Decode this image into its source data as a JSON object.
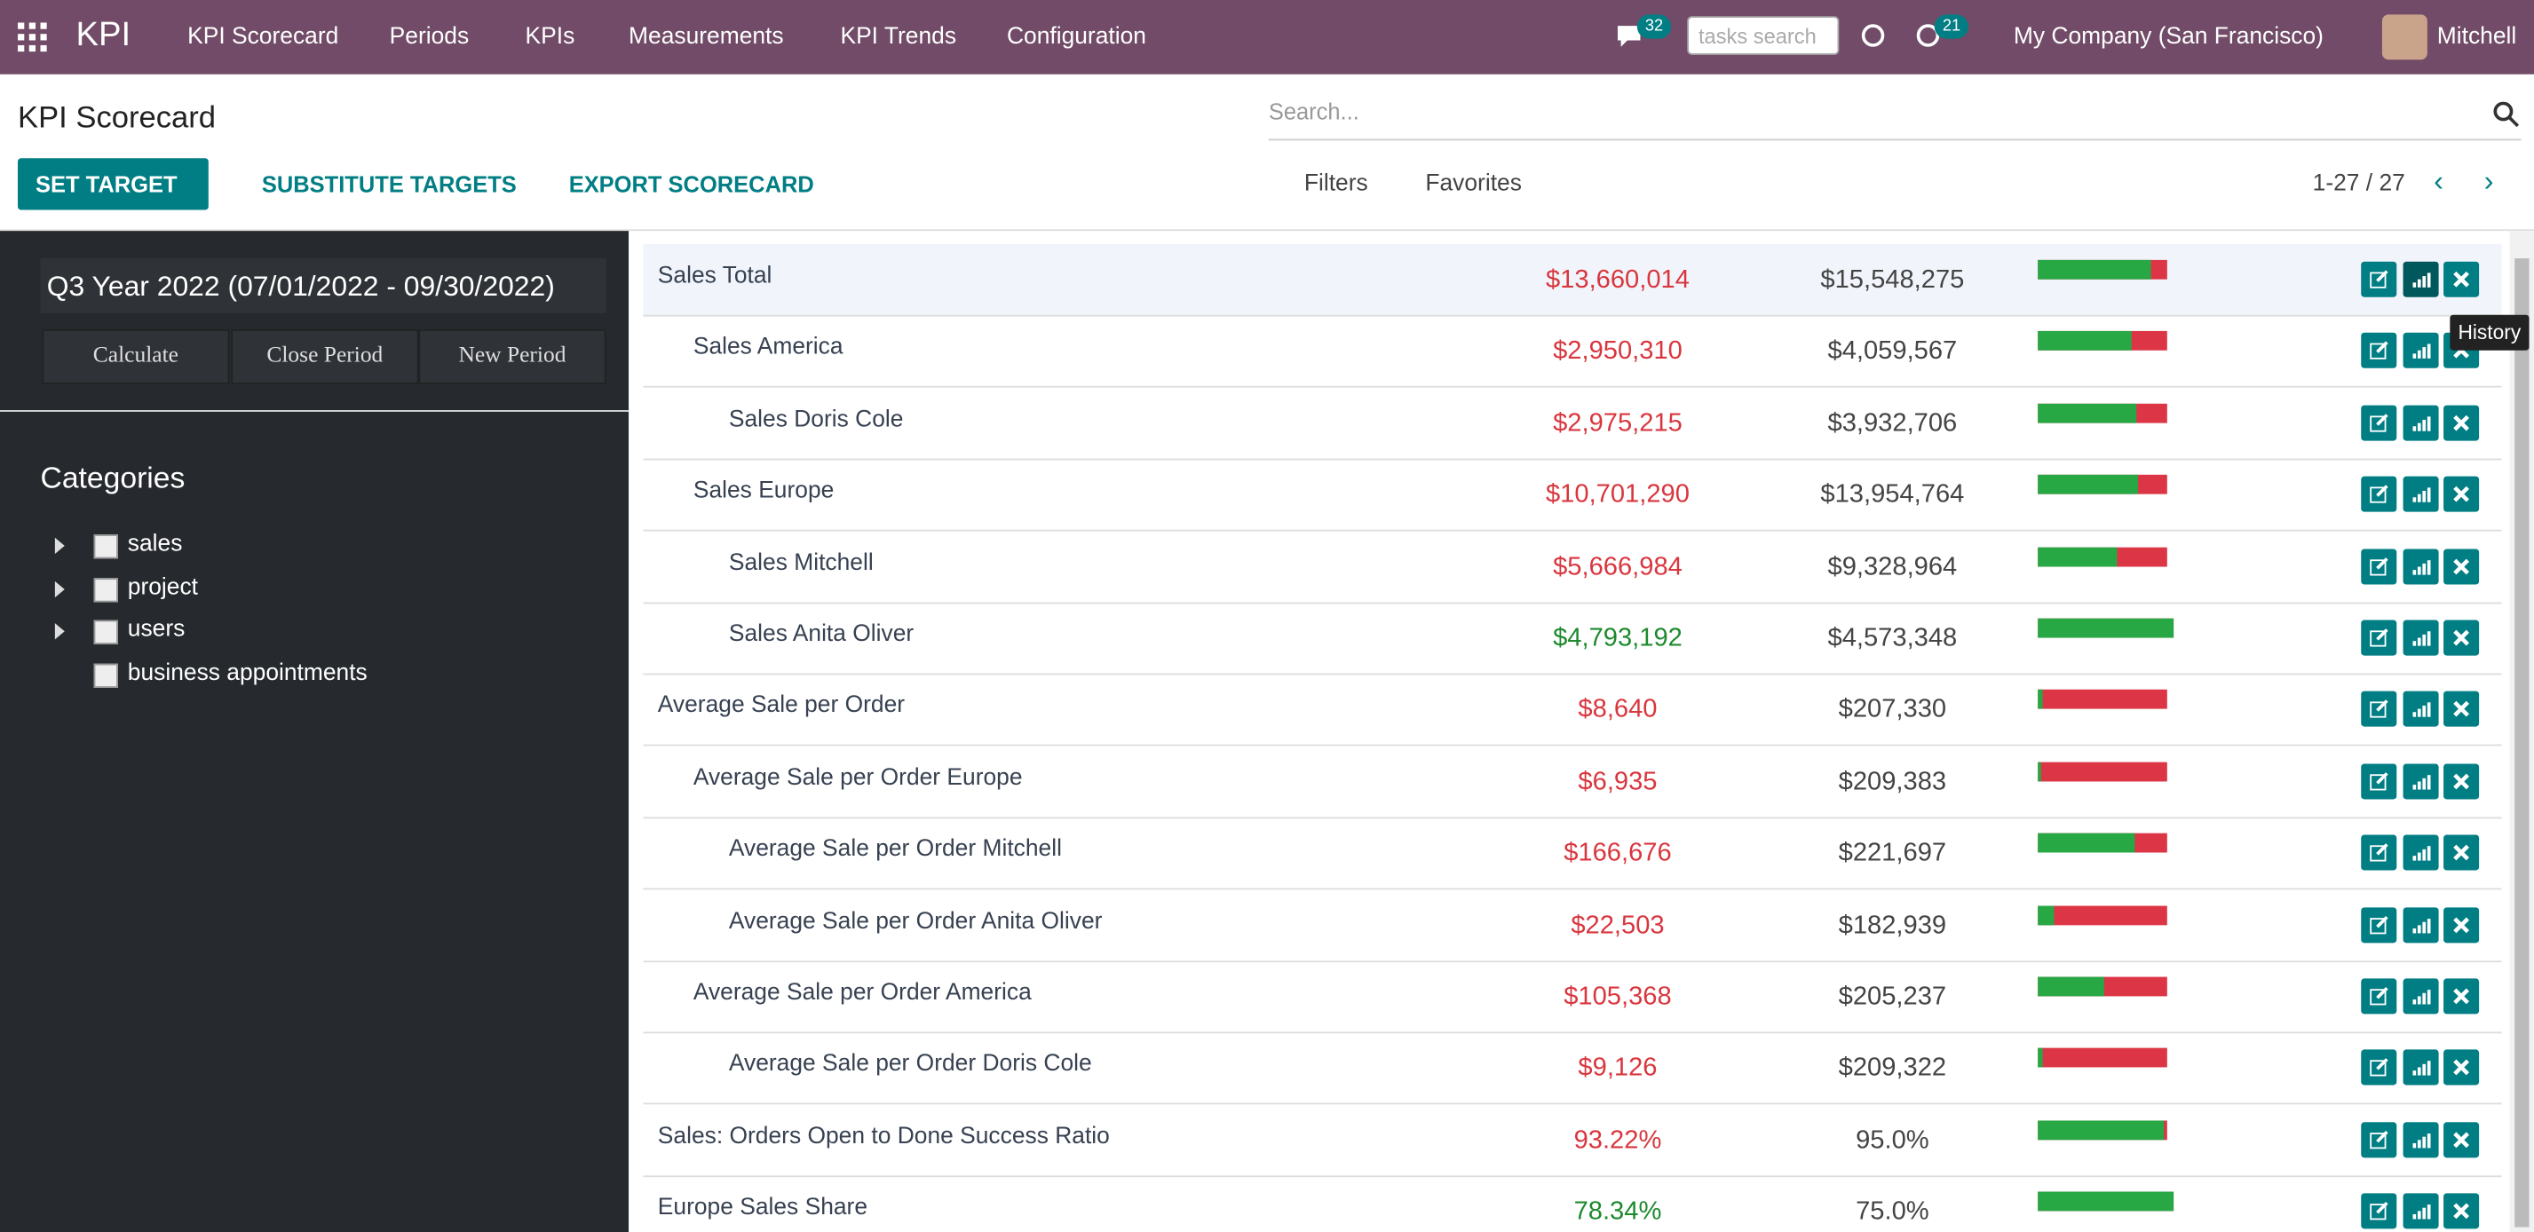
{
  "navbar": {
    "app": "KPI",
    "menu": [
      "KPI Scorecard",
      "Periods",
      "KPIs",
      "Measurements",
      "KPI Trends",
      "Configuration"
    ],
    "messages_badge": "32",
    "tasks_search": "tasks search",
    "activity_badge": "21",
    "company": "My Company (San Francisco)",
    "user": "Mitchell"
  },
  "header": {
    "title": "KPI Scorecard",
    "buttons": [
      "SET TARGET",
      "SUBSTITUTE TARGETS",
      "EXPORT SCORECARD"
    ],
    "search": "Search...",
    "filters": "Filters",
    "favorites": "Favorites",
    "pager": "1-27 / 27"
  },
  "sidebar": {
    "period": "Q3 Year 2022 (07/01/2022 - 09/30/2022)",
    "buttons": [
      "Calculate",
      "Close Period",
      "New Period"
    ],
    "categories_title": "Categories",
    "categories": [
      {
        "name": "sales",
        "expandable": true
      },
      {
        "name": "project",
        "expandable": true
      },
      {
        "name": "users",
        "expandable": true
      },
      {
        "name": "business appointments",
        "expandable": false
      }
    ]
  },
  "tooltip": "History",
  "table": {
    "rows": [
      {
        "name": "Sales Total",
        "level": 0,
        "actual": "$13,660,014",
        "target": "$15,548,275",
        "progress": 88,
        "color": "#d9363e"
      },
      {
        "name": "Sales America",
        "level": 1,
        "actual": "$2,950,310",
        "target": "$4,059,567",
        "progress": 73,
        "color": "#d9363e"
      },
      {
        "name": "Sales Doris Cole",
        "level": 2,
        "actual": "$2,975,215",
        "target": "$3,932,706",
        "progress": 76,
        "color": "#d9363e"
      },
      {
        "name": "Sales Europe",
        "level": 1,
        "actual": "$10,701,290",
        "target": "$13,954,764",
        "progress": 77,
        "color": "#d9363e"
      },
      {
        "name": "Sales Mitchell",
        "level": 2,
        "actual": "$5,666,984",
        "target": "$9,328,964",
        "progress": 61,
        "color": "#d9363e"
      },
      {
        "name": "Sales Anita Oliver",
        "level": 2,
        "actual": "$4,793,192",
        "target": "$4,573,348",
        "progress": 100,
        "color": "#1e8a2e"
      },
      {
        "name": "Average Sale per Order",
        "level": 0,
        "actual": "$8,640",
        "target": "$207,330",
        "progress": 4,
        "color": "#d9363e"
      },
      {
        "name": "Average Sale per Order Europe",
        "level": 1,
        "actual": "$6,935",
        "target": "$209,383",
        "progress": 3,
        "color": "#d9363e"
      },
      {
        "name": "Average Sale per Order Mitchell",
        "level": 2,
        "actual": "$166,676",
        "target": "$221,697",
        "progress": 75,
        "color": "#d9363e"
      },
      {
        "name": "Average Sale per Order Anita Oliver",
        "level": 2,
        "actual": "$22,503",
        "target": "$182,939",
        "progress": 12,
        "color": "#d9363e"
      },
      {
        "name": "Average Sale per Order America",
        "level": 1,
        "actual": "$105,368",
        "target": "$205,237",
        "progress": 51,
        "color": "#d9363e"
      },
      {
        "name": "Average Sale per Order Doris Cole",
        "level": 2,
        "actual": "$9,126",
        "target": "$209,322",
        "progress": 4,
        "color": "#d9363e"
      },
      {
        "name": "Sales: Orders Open to Done Success Ratio",
        "level": 0,
        "actual": "93.22%",
        "target": "95.0%",
        "progress": 98,
        "color": "#d9363e"
      },
      {
        "name": "Europe Sales Share",
        "level": 0,
        "actual": "78.34%",
        "target": "75.0%",
        "progress": 100,
        "color": "#1e8a2e"
      }
    ]
  }
}
